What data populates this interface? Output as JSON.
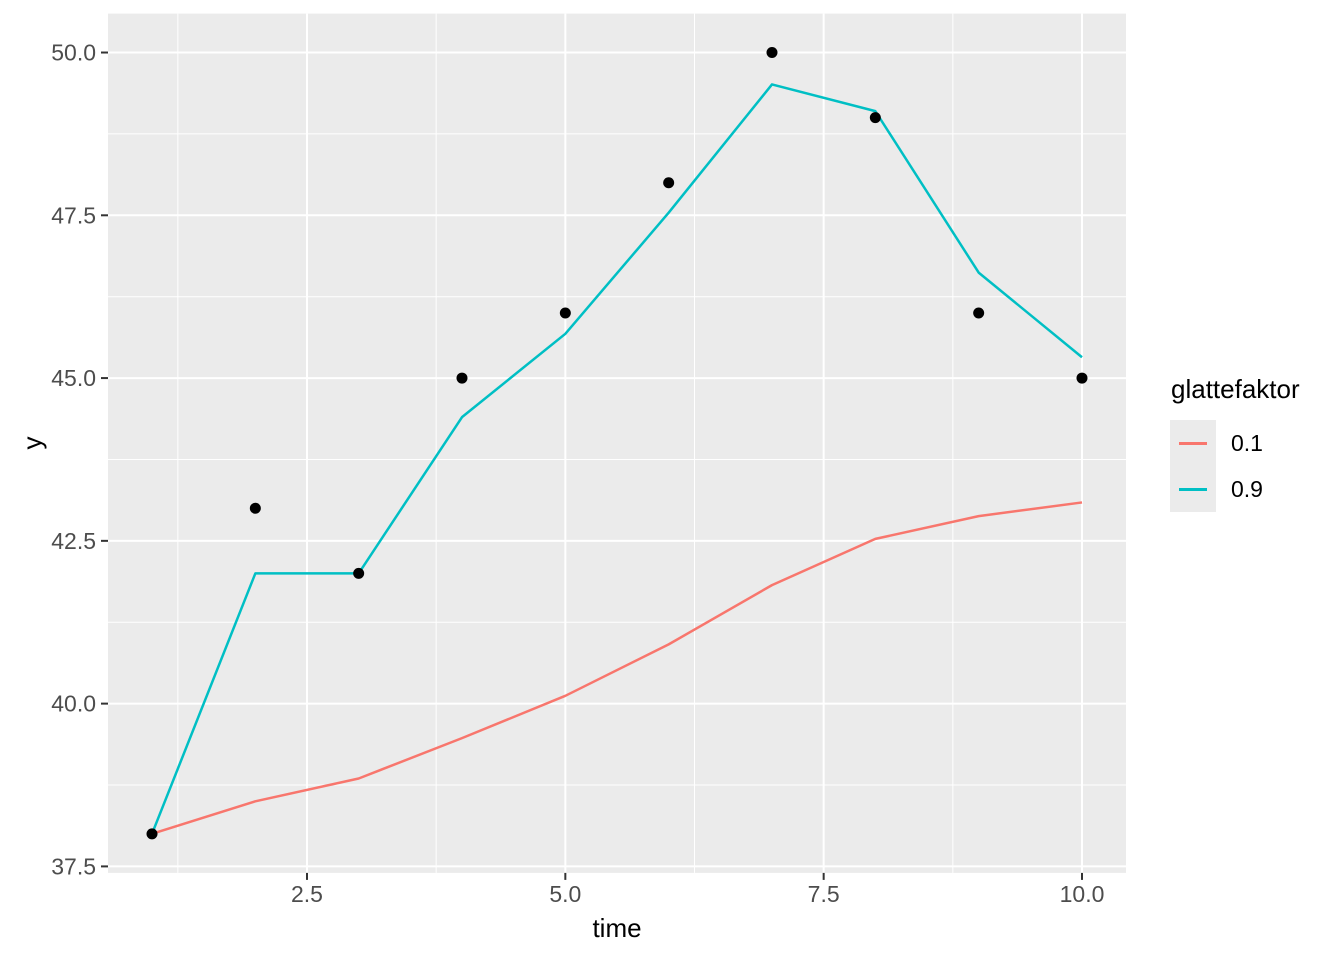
{
  "chart_data": {
    "type": "line",
    "title": "",
    "xlabel": "time",
    "ylabel": "y",
    "x": [
      1,
      2,
      3,
      4,
      5,
      6,
      7,
      8,
      9,
      10
    ],
    "points": {
      "name": "observed-data-points",
      "color": "#000000",
      "y": [
        38,
        43,
        42,
        45,
        46,
        48,
        50,
        49,
        46,
        45
      ]
    },
    "series": [
      {
        "name": "0.1",
        "color": "#F8766D",
        "values": [
          38,
          38.5,
          38.85,
          39.47,
          40.12,
          40.91,
          41.82,
          42.53,
          42.88,
          43.09
        ]
      },
      {
        "name": "0.9",
        "color": "#00BFC4",
        "values": [
          38,
          42,
          42,
          44.4,
          45.68,
          47.54,
          49.51,
          49.1,
          46.62,
          45.32
        ]
      }
    ],
    "axes": {
      "x_ticks": [
        2.5,
        5,
        7.5,
        10
      ],
      "x_tick_labels": [
        "2.5",
        "5.0",
        "7.5",
        "10.0"
      ],
      "x_minor_ticks": [
        1.25,
        3.75,
        6.25,
        8.75
      ],
      "y_ticks": [
        37.5,
        40,
        42.5,
        45,
        47.5,
        50
      ],
      "y_tick_labels": [
        "37.5",
        "40.0",
        "42.5",
        "45.0",
        "47.5",
        "50.0"
      ],
      "y_minor_ticks": [
        38.75,
        41.25,
        43.75,
        46.25,
        48.75
      ],
      "xlim": [
        0.55,
        10.45
      ],
      "ylim": [
        37.4,
        50.6
      ],
      "grid": "major+minor",
      "legend_position": "right"
    },
    "legend": {
      "title": "glattefaktor",
      "entries": [
        {
          "label": "0.1",
          "color": "#F8766D"
        },
        {
          "label": "0.9",
          "color": "#00BFC4"
        }
      ]
    },
    "colors": {
      "page_bg": "#FFFFFF",
      "panel_bg": "#EBEBEB",
      "grid": "#FFFFFF",
      "tick_label": "#4D4D4D",
      "tick_mark": "#333333",
      "axis_title": "#000000"
    }
  }
}
